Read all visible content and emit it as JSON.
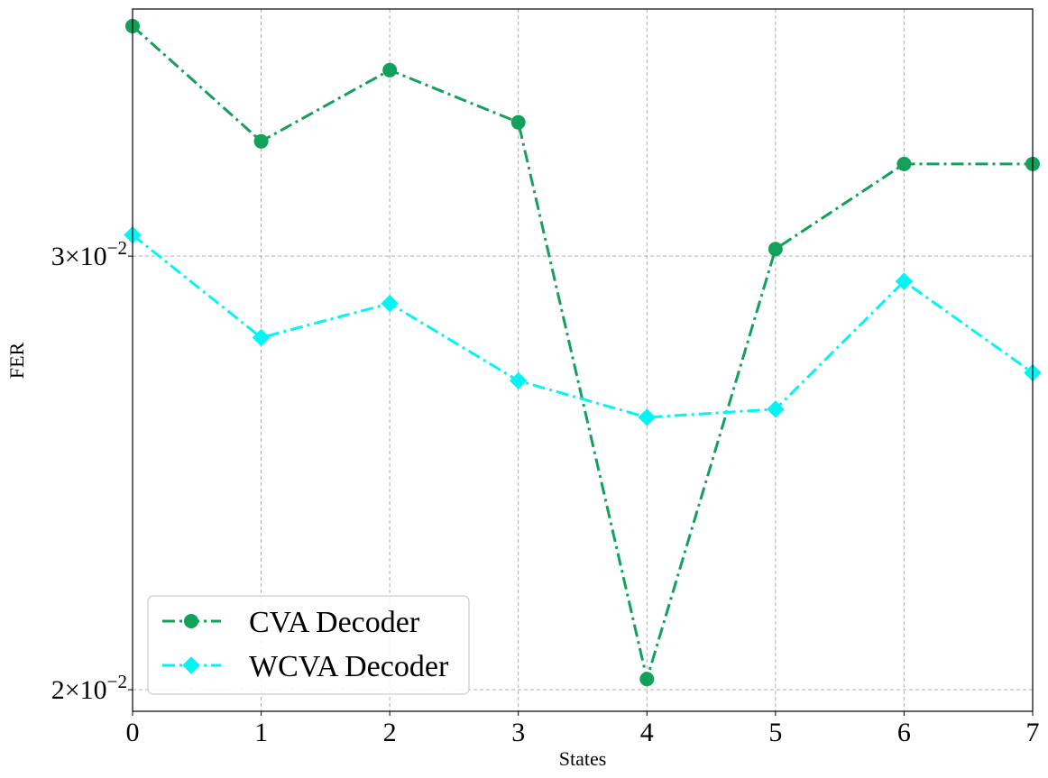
{
  "chart_data": {
    "type": "line",
    "x": [
      0,
      1,
      2,
      3,
      4,
      5,
      6,
      7
    ],
    "x_ticks": [
      "0",
      "1",
      "2",
      "3",
      "4",
      "5",
      "6",
      "7"
    ],
    "xlabel": "States",
    "ylabel": "FER",
    "yscale": "log",
    "xlim": [
      0,
      7
    ],
    "ylim": [
      0.0196,
      0.0378
    ],
    "y_ticks": [
      {
        "value": 0.03,
        "mantissa": "3",
        "exponent": "−2"
      },
      {
        "value": 0.02,
        "mantissa": "2",
        "exponent": "−2"
      }
    ],
    "grid": true,
    "legend_position": "lower-left",
    "series": [
      {
        "name": "CVA Decoder",
        "color": "#12a05a",
        "marker": "circle",
        "line_style": "dash-dot",
        "values": [
          0.0372,
          0.0334,
          0.0357,
          0.034,
          0.0202,
          0.0302,
          0.0327,
          0.0327
        ]
      },
      {
        "name": "WCVA Decoder",
        "color": "#00f5f5",
        "marker": "diamond",
        "line_style": "dash-dot",
        "values": [
          0.0306,
          0.0278,
          0.0287,
          0.0267,
          0.0258,
          0.026,
          0.0293,
          0.0269
        ]
      }
    ]
  }
}
